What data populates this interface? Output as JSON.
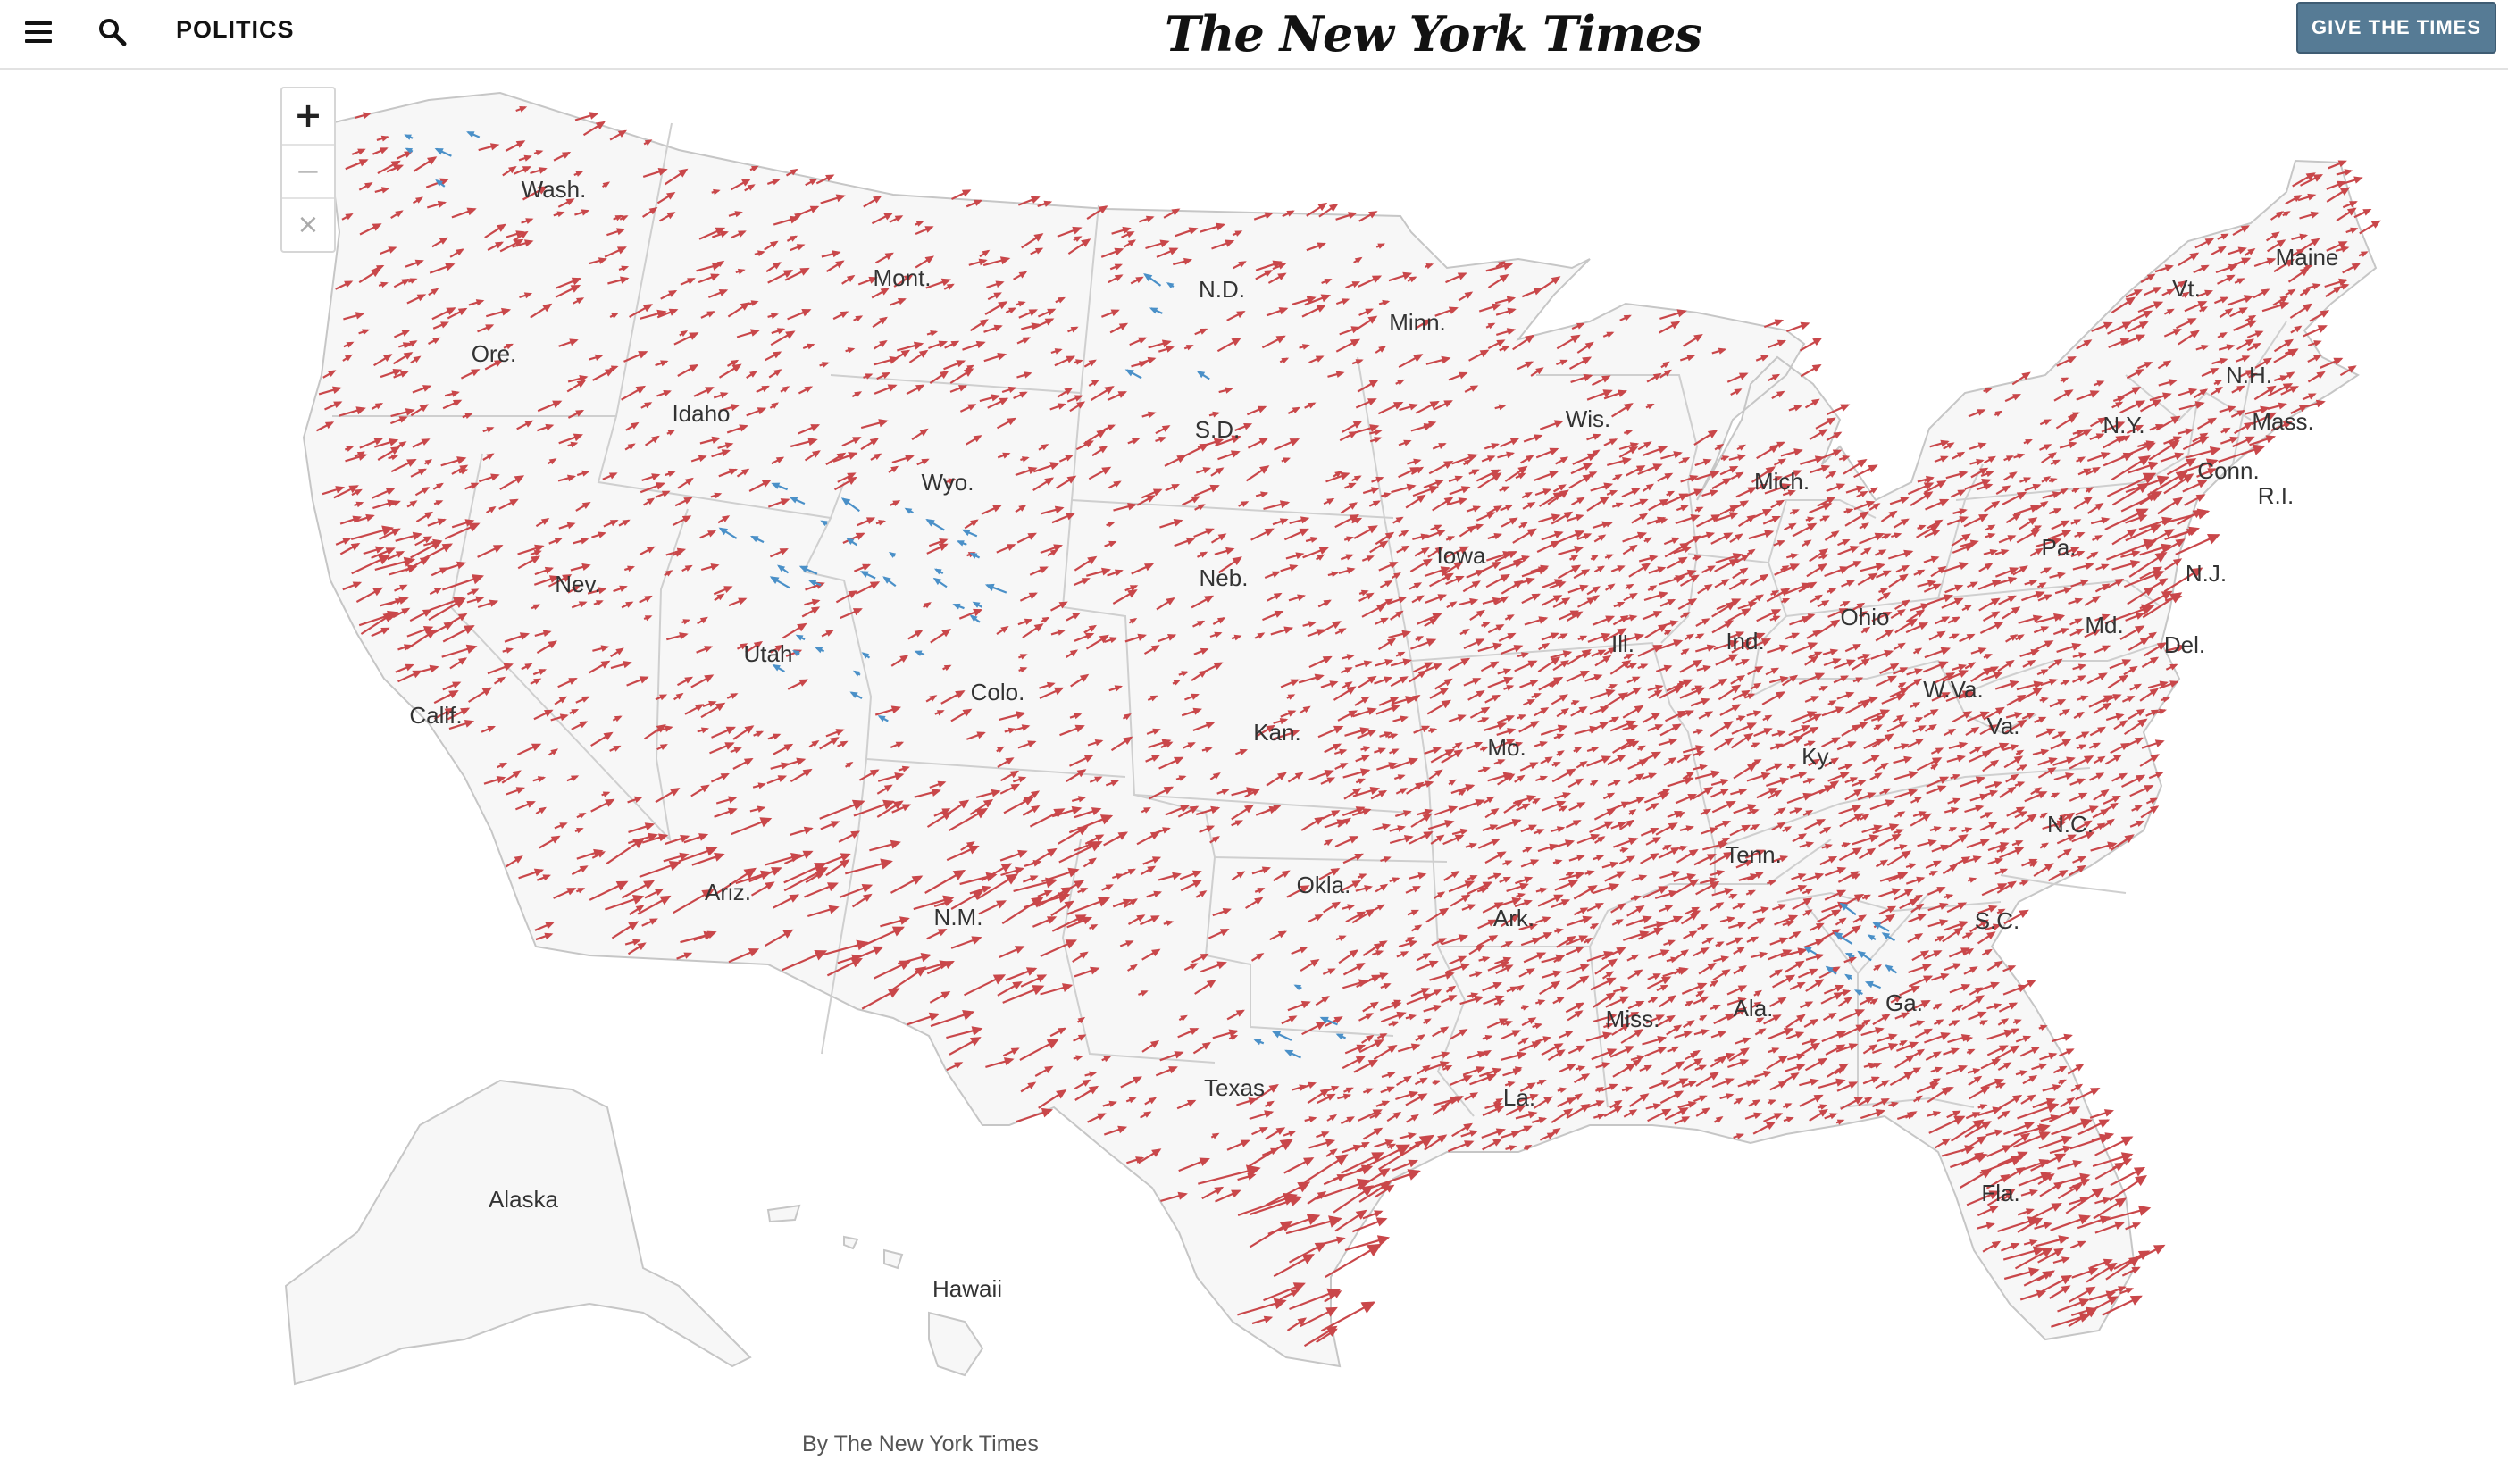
{
  "header": {
    "section": "POLITICS",
    "logo": "The New York Times",
    "give_button": "GIVE THE TIMES"
  },
  "zoom": {
    "in_symbol": "+",
    "out_symbol": "−",
    "reset_symbol": "×"
  },
  "map": {
    "colors": {
      "shift_right": "#c9474a",
      "shift_left": "#4a90c8",
      "land": "#f7f7f7",
      "border": "#c8c8c8"
    },
    "arrow_legend": {
      "shift_right": "Shift toward Republicans (red, pointing right)",
      "shift_left": "Shift toward Democrats (blue, pointing left)"
    },
    "states": [
      "Wash.",
      "Ore.",
      "Calif.",
      "Idaho",
      "Mont.",
      "Nev.",
      "Utah",
      "Wyo.",
      "Colo.",
      "Ariz.",
      "N.M.",
      "N.D.",
      "S.D.",
      "Neb.",
      "Kan.",
      "Okla.",
      "Texas",
      "Minn.",
      "Iowa",
      "Mo.",
      "Ark.",
      "La.",
      "Wis.",
      "Ill.",
      "Mich.",
      "Ind.",
      "Ohio",
      "Ky.",
      "Tenn.",
      "Miss.",
      "Ala.",
      "Ga.",
      "Fla.",
      "S.C.",
      "N.C.",
      "Va.",
      "W.Va.",
      "Md.",
      "Del.",
      "N.J.",
      "Pa.",
      "N.Y.",
      "Conn.",
      "R.I.",
      "Mass.",
      "N.H.",
      "Vt.",
      "Maine",
      "Alaska",
      "Hawaii"
    ]
  },
  "credit": "By The New York Times"
}
